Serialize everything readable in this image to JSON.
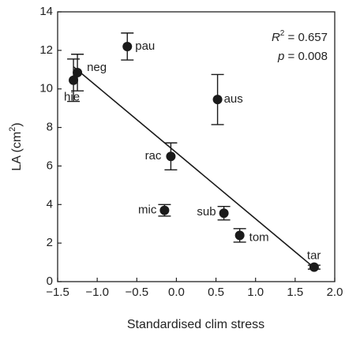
{
  "chart_data": {
    "type": "scatter",
    "xlabel": "Standardised clim stress",
    "ylabel": [
      "LA (cm",
      "2",
      ")"
    ],
    "annotation": {
      "r2": [
        "R",
        "2",
        " = 0.657"
      ],
      "p": [
        "p",
        " = 0.008"
      ]
    },
    "labels": [
      "hie",
      "neg",
      "pau",
      "aus",
      "rac",
      "mic",
      "sub",
      "tom",
      "tar"
    ],
    "x": [
      -1.3,
      -1.25,
      -0.62,
      0.52,
      -0.07,
      -0.15,
      0.6,
      0.8,
      1.74
    ],
    "y": [
      10.45,
      10.85,
      12.2,
      9.45,
      6.5,
      3.7,
      3.55,
      2.4,
      0.75
    ],
    "yerr": [
      1.1,
      0.95,
      0.7,
      1.3,
      0.7,
      0.3,
      0.35,
      0.35,
      0.1
    ],
    "color": "#1a1a1a",
    "fit": {
      "x": [
        -1.3,
        1.74
      ],
      "y": [
        11.15,
        0.72
      ]
    },
    "xlim": [
      -1.5,
      2.0
    ],
    "xticks": [
      {
        "value": -1.5,
        "label": "−1.5"
      },
      {
        "value": -1.0,
        "label": "−1.0"
      },
      {
        "value": -0.5,
        "label": "−0.5"
      },
      {
        "value": 0,
        "label": "0.0"
      },
      {
        "value": 0.5,
        "label": "0.5"
      },
      {
        "value": 1.0,
        "label": "1.0"
      },
      {
        "value": 1.5,
        "label": "1.5"
      },
      {
        "value": 2.0,
        "label": "2.0"
      }
    ],
    "ylim": [
      0,
      14
    ],
    "yticks": [
      0,
      2,
      4,
      6,
      8,
      10,
      12,
      14
    ]
  }
}
